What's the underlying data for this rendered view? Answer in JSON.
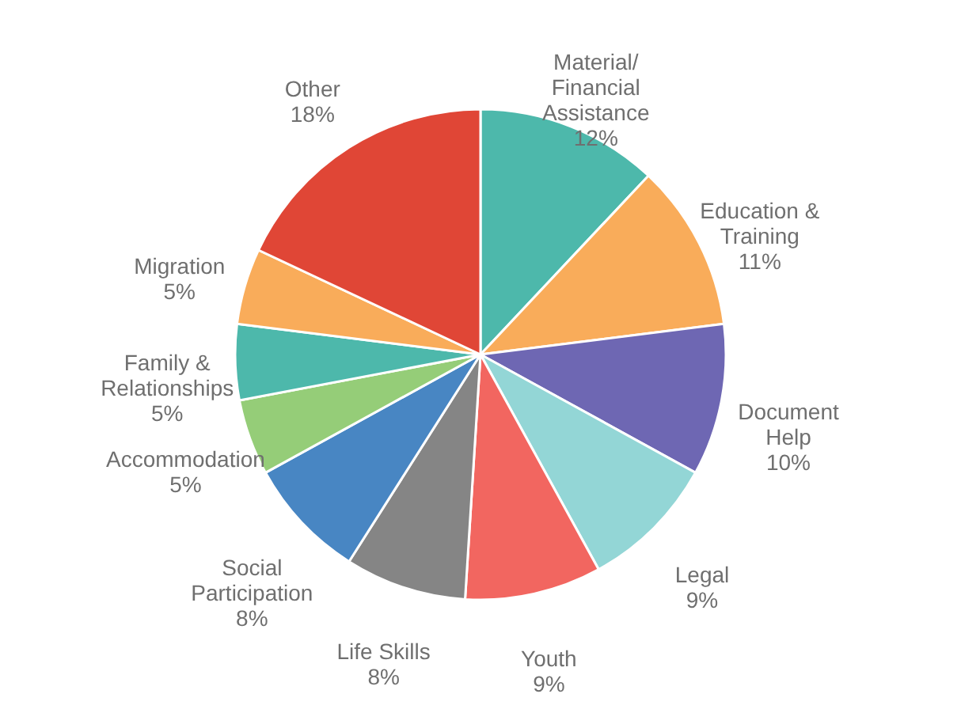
{
  "chart_data": {
    "type": "pie",
    "categories": [
      "Material/ Financial Assistance",
      "Education & Training",
      "Document Help",
      "Legal",
      "Youth",
      "Life Skills",
      "Social Participation",
      "Accommodation",
      "Family & Relationships",
      "Migration",
      "Other"
    ],
    "values": [
      12,
      11,
      10,
      9,
      9,
      8,
      8,
      5,
      5,
      5,
      18
    ],
    "value_labels": [
      "12%",
      "11%",
      "10%",
      "9%",
      "9%",
      "8%",
      "8%",
      "5%",
      "5%",
      "5%",
      "18%"
    ],
    "colors": [
      "#4db8ab",
      "#f9ac5a",
      "#6e67b3",
      "#93d6d6",
      "#f26660",
      "#858585",
      "#4886c3",
      "#95cd78",
      "#4db8ab",
      "#f9ac5a",
      "#e04636"
    ]
  }
}
